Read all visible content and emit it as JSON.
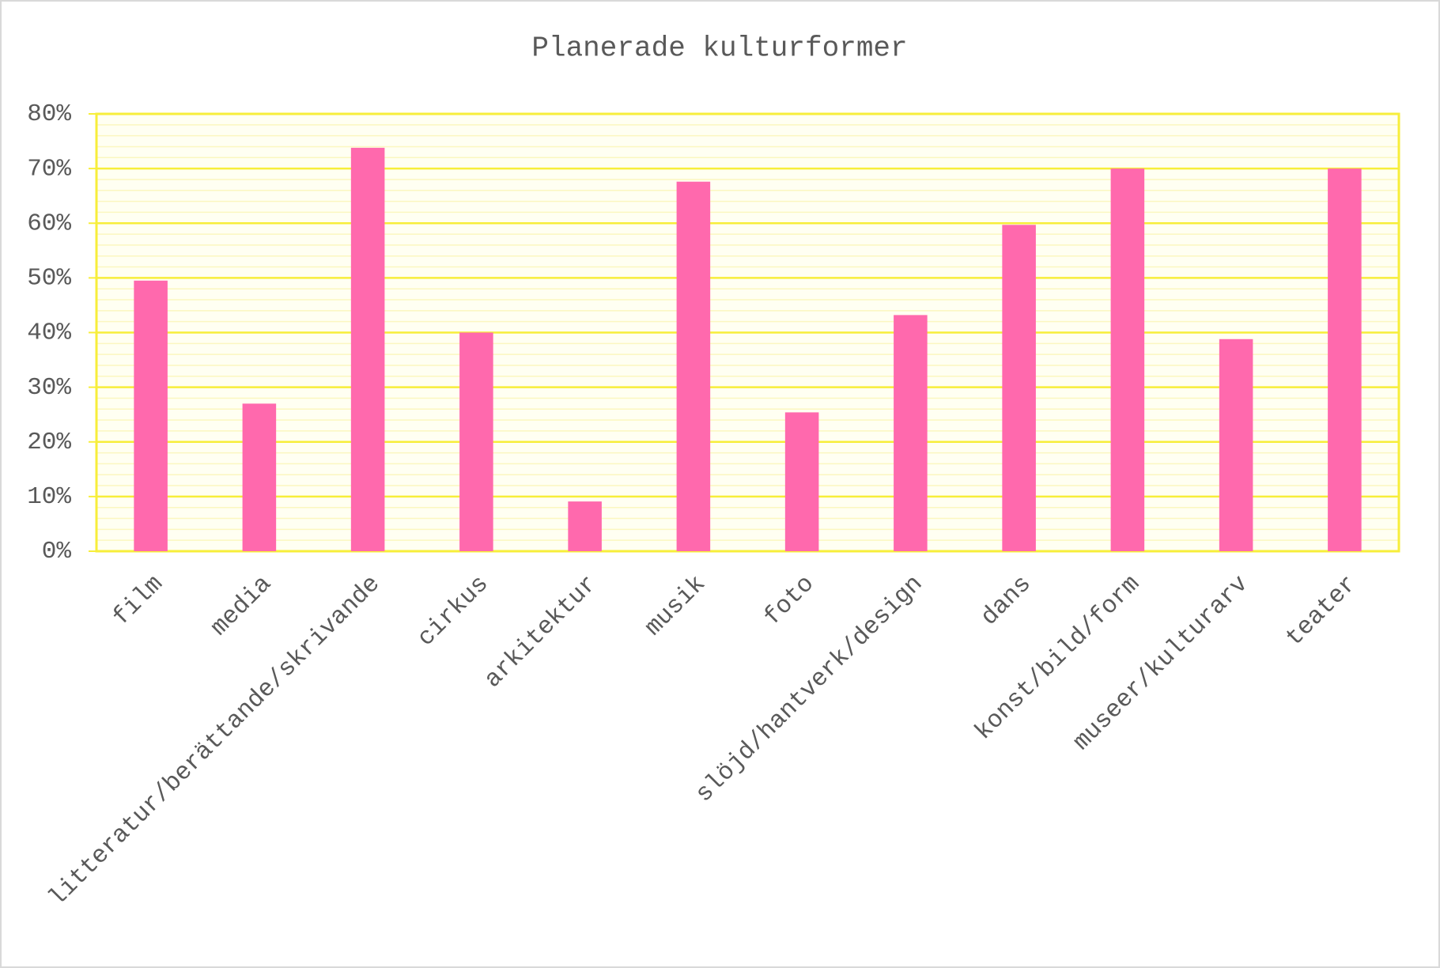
{
  "chart_data": {
    "type": "bar",
    "title": "Planerade kulturformer",
    "categories": [
      "film",
      "media",
      "litteratur/berättande/skrivande",
      "cirkus",
      "arkitektur",
      "musik",
      "foto",
      "slöjd/hantverk/design",
      "dans",
      "konst/bild/form",
      "museer/kulturarv",
      "teater"
    ],
    "values": [
      49.5,
      27,
      73.8,
      40,
      9.1,
      67.6,
      25.4,
      43.2,
      59.7,
      70,
      38.8,
      70
    ],
    "color": "#ff69ad",
    "ylim": [
      0,
      80
    ],
    "yticks": [
      {
        "value": 0,
        "label": "0%"
      },
      {
        "value": 10,
        "label": "10%"
      },
      {
        "value": 20,
        "label": "20%"
      },
      {
        "value": 30,
        "label": "30%"
      },
      {
        "value": 40,
        "label": "40%"
      },
      {
        "value": 50,
        "label": "50%"
      },
      {
        "value": 60,
        "label": "60%"
      },
      {
        "value": 70,
        "label": "70%"
      },
      {
        "value": 80,
        "label": "80%"
      }
    ],
    "grid": true
  }
}
